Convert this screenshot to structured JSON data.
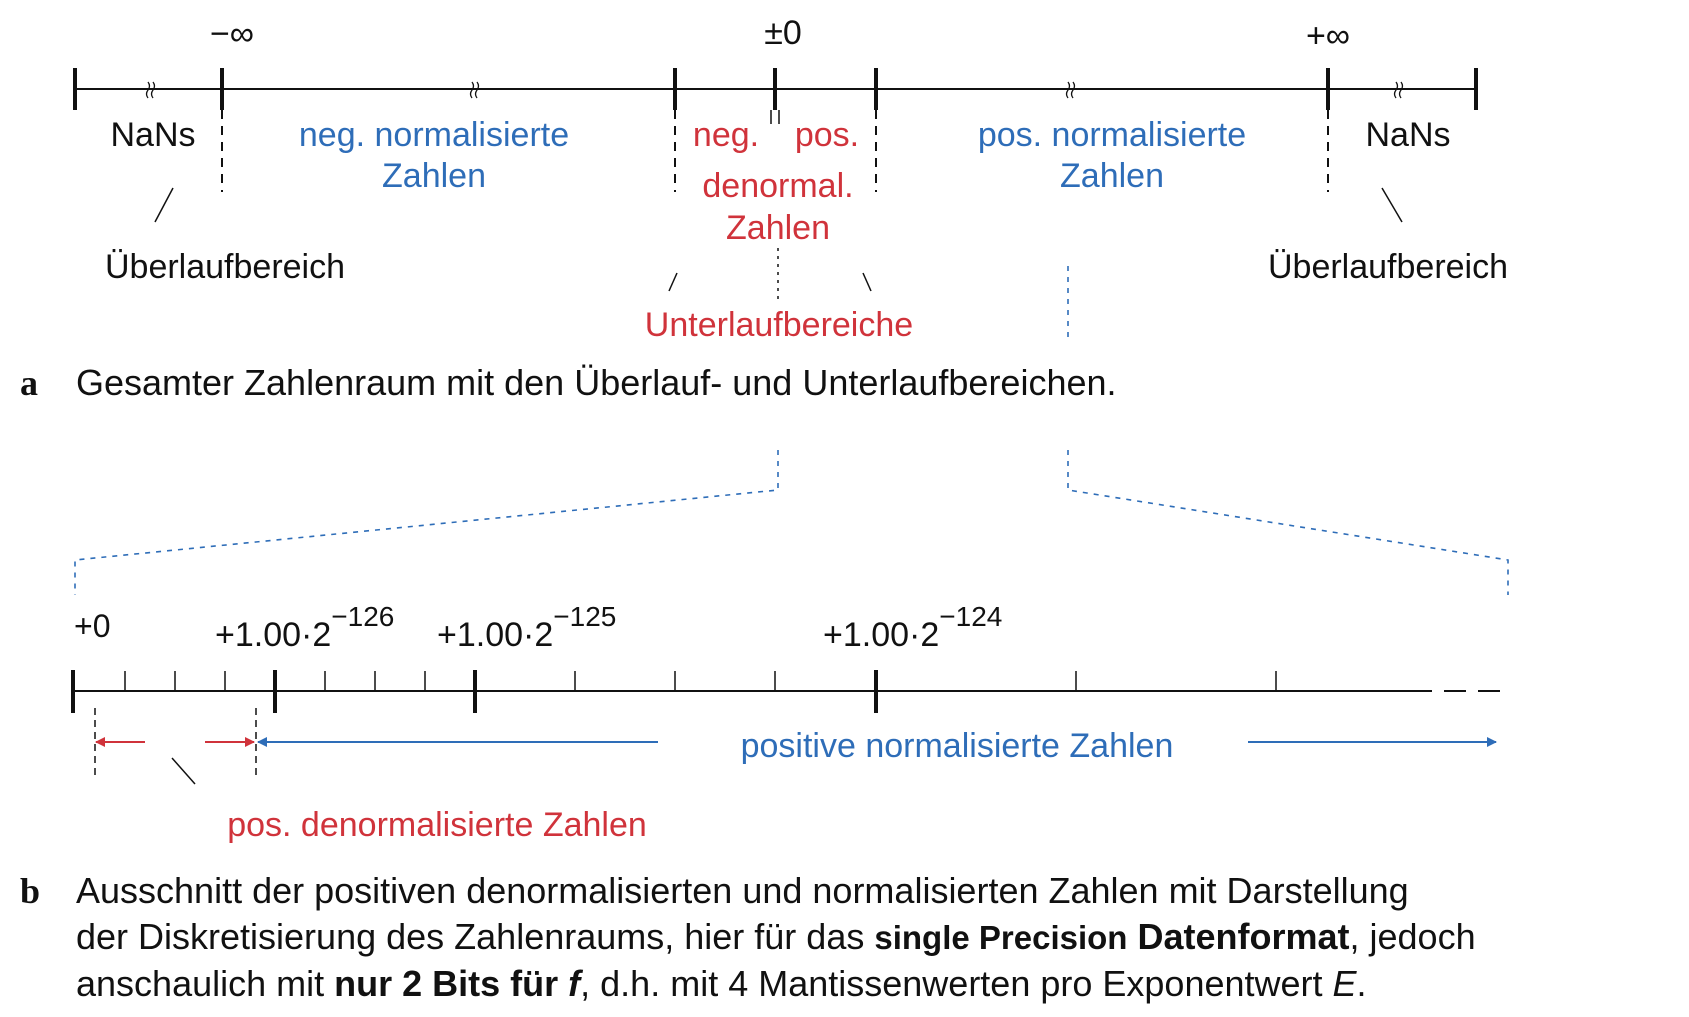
{
  "colors": {
    "black": "#111111",
    "blue": "#2e6db8",
    "red": "#d0333b"
  },
  "part_a": {
    "labels": {
      "neg_inf": "−∞",
      "pm_zero": "±0",
      "pos_inf": "+∞",
      "nans_left": "NaNs",
      "nans_right": "NaNs",
      "neg_norm_1": "neg. normalisierte",
      "neg_norm_2": "Zahlen",
      "pos_norm_1": "pos. normalisierte",
      "pos_norm_2": "Zahlen",
      "neg": "neg.",
      "pos": "pos.",
      "denormal": "denormal.",
      "denormal_zahlen": "Zahlen",
      "overflow_left": "Überlaufbereich",
      "overflow_right": "Überlaufbereich",
      "underflow": "Unterlaufbereiche"
    },
    "caption_letter": "a",
    "caption": "Gesamter Zahlenraum mit den Überlauf- und Unterlaufbereichen."
  },
  "part_b": {
    "ticks": [
      {
        "base": "+0",
        "exp": ""
      },
      {
        "base": "+1.00·2",
        "exp": "−126"
      },
      {
        "base": "+1.00·2",
        "exp": "−125"
      },
      {
        "base": "+1.00·2",
        "exp": "−124"
      }
    ],
    "pos_norm": "positive normalisierte Zahlen",
    "pos_denorm": "pos. denormalisierte Zahlen",
    "caption_letter": "b",
    "caption_1": "Ausschnitt der positiven denormalisierten und normalisierten Zahlen mit Darstellung",
    "caption_2a": "der Diskretisierung des Zahlenraums, hier für das ",
    "caption_2b": "single Precision",
    "caption_2c": " ",
    "caption_2d": "Datenformat",
    "caption_2e": ", jedoch",
    "caption_3a": "anschaulich mit ",
    "caption_3b": "nur 2 Bits für ",
    "caption_3c": "f",
    "caption_3d": ", d.h. mit 4 Mantissenwerten pro Exponentwert ",
    "caption_3e": "E",
    "caption_3f": "."
  }
}
